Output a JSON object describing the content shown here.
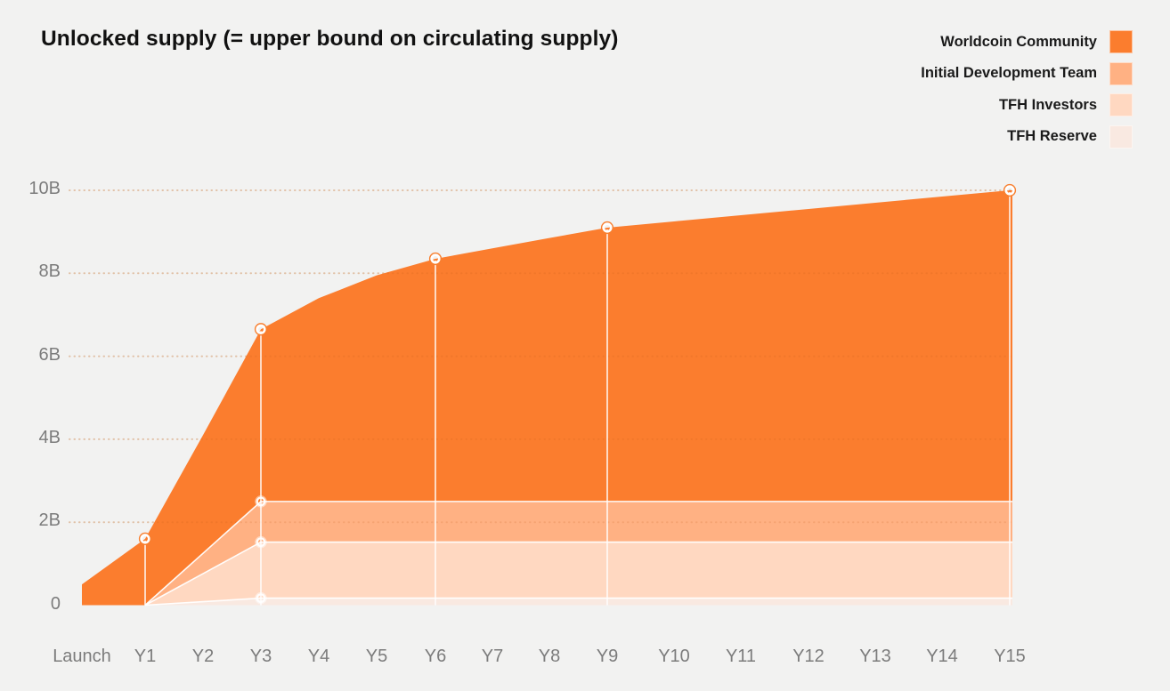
{
  "title": "Unlocked supply (= upper bound on circulating supply)",
  "colors": {
    "background": "#f2f2f1",
    "title_text": "#111111",
    "axis_text": "#7c7c7c",
    "legend_text": "#1a1a1a",
    "gridline": "#e8d5c3",
    "gridline_overlay": "rgba(193,96,24,0.16)",
    "separator_line": "#ffffff",
    "marker_ring": "#ffffff",
    "marker_outline": "#f87f2f"
  },
  "legend": {
    "position": "top-right",
    "items": [
      {
        "label": "Worldcoin Community",
        "color": "#fb7d2e"
      },
      {
        "label": "Initial Development Team",
        "color": "#ffb183"
      },
      {
        "label": "TFH Investors",
        "color": "#ffd8c1"
      },
      {
        "label": "TFH Reserve",
        "color": "#f9e9e1"
      }
    ]
  },
  "chart_data": {
    "type": "area",
    "stacked": true,
    "title": "Unlocked supply (= upper bound on circulating supply)",
    "x_categories": [
      "Launch",
      "Y1",
      "Y2",
      "Y3",
      "Y4",
      "Y5",
      "Y6",
      "Y7",
      "Y8",
      "Y9",
      "Y10",
      "Y11",
      "Y12",
      "Y13",
      "Y14",
      "Y15"
    ],
    "y_tick_labels": [
      "0",
      "2B",
      "4B",
      "6B",
      "8B",
      "10B"
    ],
    "y_tick_values": [
      0,
      2,
      4,
      6,
      8,
      10
    ],
    "ylim": [
      0,
      10
    ],
    "unit": "billions of tokens",
    "grid": "dotted-horizontal",
    "legend_position": "top-right",
    "series_order": "bottom-to-top",
    "series": [
      {
        "name": "TFH Reserve",
        "color": "#f9e9e1",
        "values": [
          0,
          0,
          0.085,
          0.17,
          0.17,
          0.17,
          0.17,
          0.17,
          0.17,
          0.17,
          0.17,
          0.17,
          0.17,
          0.17,
          0.17,
          0.17
        ]
      },
      {
        "name": "TFH Investors",
        "color": "#ffd8c1",
        "values": [
          0,
          0,
          0.675,
          1.35,
          1.35,
          1.35,
          1.35,
          1.35,
          1.35,
          1.35,
          1.35,
          1.35,
          1.35,
          1.35,
          1.35,
          1.35
        ]
      },
      {
        "name": "Initial Development Team",
        "color": "#ffb183",
        "values": [
          0,
          0,
          0.49,
          0.98,
          0.98,
          0.98,
          0.98,
          0.98,
          0.98,
          0.98,
          0.98,
          0.98,
          0.98,
          0.98,
          0.98,
          0.98
        ]
      },
      {
        "name": "Worldcoin Community",
        "color": "#fb7d2e",
        "values": [
          0.5,
          1.6,
          2.85,
          4.15,
          4.9,
          5.45,
          5.85,
          6.1,
          6.35,
          6.6,
          6.75,
          6.9,
          7.05,
          7.2,
          7.35,
          7.5
        ]
      }
    ],
    "total_unlocked": [
      0.5,
      1.6,
      4.1,
      6.65,
      7.4,
      7.95,
      8.35,
      8.6,
      8.85,
      9.1,
      9.25,
      9.4,
      9.55,
      9.7,
      9.85,
      10
    ],
    "markers": {
      "total_curve_at": [
        "Y1",
        "Y3",
        "Y6",
        "Y9",
        "Y15"
      ],
      "band_boundaries_at": [
        "Y3"
      ]
    }
  }
}
